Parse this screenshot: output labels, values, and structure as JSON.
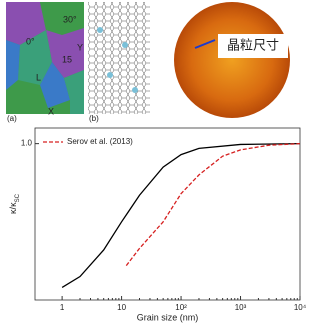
{
  "images": {
    "panel_a": {
      "tag": "(a)",
      "labels": [
        "30°",
        "0°",
        "15",
        "Y",
        "X",
        "L"
      ]
    },
    "panel_b": {
      "tag": "(b)"
    },
    "panel_c": {
      "caption": "晶粒尺寸"
    }
  },
  "chart_data": {
    "type": "line",
    "xlabel": "Grain size (nm)",
    "ylabel": "κ/κ",
    "ylabel_sub": "SC",
    "xscale": "log",
    "xlim": [
      0.35,
      10000
    ],
    "ylim": [
      0,
      1.1
    ],
    "xticks": [
      1,
      10,
      {
        "value": 100,
        "label": "10²"
      },
      {
        "value": 1000,
        "label": "10³"
      },
      {
        "value": 10000,
        "label": "10⁴"
      }
    ],
    "yticks": [
      1.0
    ],
    "ytick_labels": [
      "1.0"
    ],
    "legend": "upper left",
    "series": [
      {
        "color": "#000000",
        "dash": false,
        "x": [
          1,
          2,
          5,
          10,
          20,
          50,
          100,
          200,
          1000,
          10000
        ],
        "values": [
          0.08,
          0.15,
          0.32,
          0.5,
          0.67,
          0.85,
          0.93,
          0.97,
          0.995,
          1.0
        ]
      },
      {
        "name": "Serov et al. (2013)",
        "color": "#d62020",
        "dash": true,
        "x": [
          12,
          20,
          50,
          100,
          200,
          500,
          1000,
          3000,
          10000
        ],
        "values": [
          0.22,
          0.33,
          0.5,
          0.68,
          0.8,
          0.92,
          0.96,
          0.99,
          1.0
        ]
      }
    ]
  }
}
